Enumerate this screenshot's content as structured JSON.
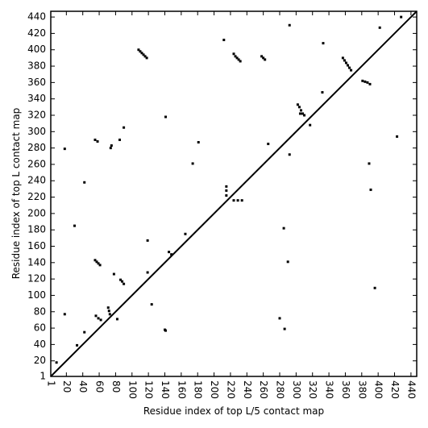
{
  "chart_data": {
    "type": "scatter",
    "x_label": "Residue index of top L/5 contact map",
    "y_label": "Residue index of top L contact map",
    "xlim": [
      1,
      447
    ],
    "ylim": [
      1,
      447
    ],
    "xticks": [
      1,
      20,
      40,
      60,
      80,
      100,
      120,
      140,
      160,
      180,
      200,
      220,
      240,
      260,
      280,
      300,
      320,
      340,
      360,
      380,
      400,
      420,
      440
    ],
    "yticks": [
      1,
      20,
      40,
      60,
      80,
      100,
      120,
      140,
      160,
      180,
      200,
      220,
      240,
      260,
      280,
      300,
      320,
      340,
      360,
      380,
      400,
      420,
      440
    ],
    "diagonal": true,
    "color": "#000000",
    "x": [
      108,
      110,
      112,
      114,
      116,
      118,
      224,
      226,
      228,
      230,
      232,
      258,
      260,
      262,
      357,
      359,
      361,
      363,
      365,
      367,
      302,
      304,
      306,
      308,
      310,
      305,
      317,
      381,
      384,
      387,
      390,
      332,
      74,
      75,
      55,
      58,
      85,
      181,
      215,
      215,
      215,
      224,
      229,
      234,
      292,
      402,
      428,
      423,
      389,
      391,
      396,
      18,
      30,
      42,
      174,
      141,
      266,
      90,
      212,
      333,
      55,
      57,
      59,
      61,
      86,
      88,
      90,
      71,
      72,
      73,
      56,
      59,
      62,
      82,
      140,
      141,
      119,
      119,
      124,
      148,
      145,
      18,
      42,
      33,
      8,
      165,
      78,
      285,
      286,
      280,
      290,
      292
    ],
    "y": [
      400,
      398,
      396,
      394,
      392,
      390,
      395,
      392,
      390,
      388,
      386,
      392,
      390,
      388,
      390,
      387,
      384,
      381,
      378,
      375,
      333,
      330,
      326,
      322,
      320,
      322,
      308,
      362,
      361,
      360,
      358,
      348,
      280,
      283,
      290,
      288,
      290,
      287,
      222,
      228,
      233,
      216,
      216,
      216,
      430,
      427,
      440,
      294,
      261,
      229,
      109,
      279,
      185,
      238,
      261,
      318,
      285,
      305,
      412,
      408,
      143,
      141,
      139,
      137,
      119,
      117,
      114,
      85,
      81,
      77,
      75,
      72,
      70,
      71,
      58,
      57,
      167,
      128,
      89,
      150,
      153,
      77,
      55,
      39,
      18,
      175,
      126,
      182,
      59,
      72,
      141,
      272
    ]
  }
}
